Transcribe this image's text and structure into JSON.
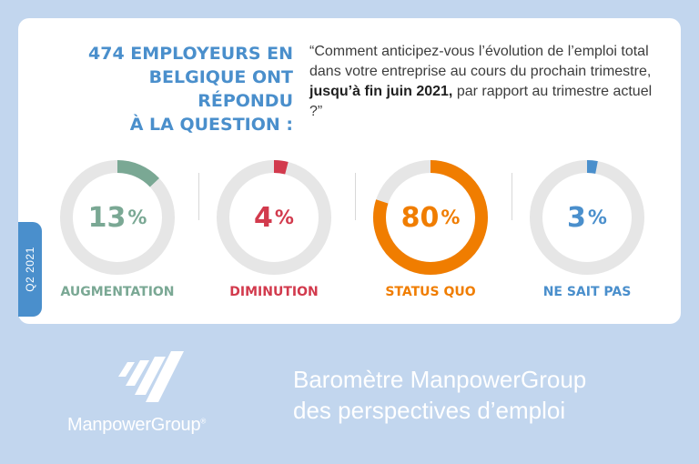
{
  "headline": {
    "line1": "474 EMPLOYEURS EN",
    "line2": "BELGIQUE ONT RÉPONDU",
    "line3": "À LA QUESTION :"
  },
  "question": {
    "part1": "“Comment anticipez-vous l’évolution de l’emploi total dans votre entreprise au cours du prochain trimestre, ",
    "strong": "jusqu’à fin juin 2021,",
    "part2": " par rapport au trimestre actuel ?”"
  },
  "period_tab": "Q2 2021",
  "results": [
    {
      "value": 13,
      "value_text": "13",
      "sign": "%",
      "label": "AUGMENTATION",
      "color": "#7aa894"
    },
    {
      "value": 4,
      "value_text": "4",
      "sign": "%",
      "label": "DIMINUTION",
      "color": "#d23a4d"
    },
    {
      "value": 80,
      "value_text": "80",
      "sign": "%",
      "label": "STATUS QUO",
      "color": "#f07d00"
    },
    {
      "value": 3,
      "value_text": "3",
      "sign": "%",
      "label": "NE SAIT PAS",
      "color": "#4a8fcc"
    }
  ],
  "track_color": "#e6e6e6",
  "brand": {
    "name": "ManpowerGroup",
    "mark": "®"
  },
  "footer": {
    "line1": "Baromètre ManpowerGroup",
    "line2": "des perspectives d’emploi"
  }
}
